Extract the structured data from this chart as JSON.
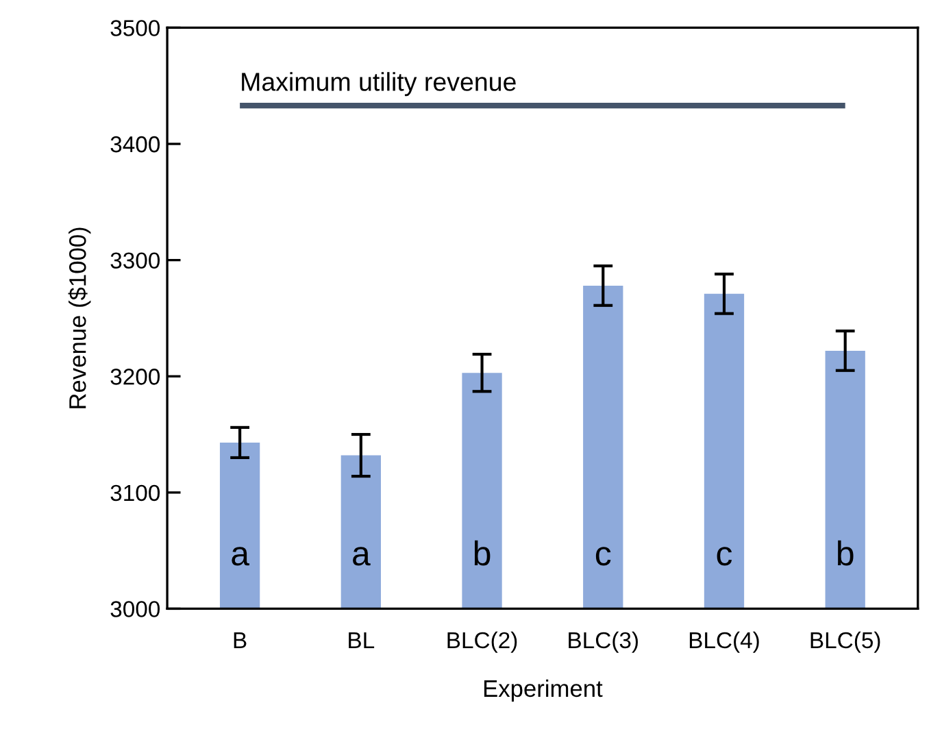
{
  "chart_data": {
    "type": "bar",
    "xlabel": "Experiment",
    "ylabel": "Revenue ($1000)",
    "categories": [
      "B",
      "BL",
      "BLC(2)",
      "BLC(3)",
      "BLC(4)",
      "BLC(5)"
    ],
    "values": [
      3143,
      3132,
      3203,
      3278,
      3271,
      3222
    ],
    "errors": [
      13,
      18,
      16,
      17,
      17,
      17
    ],
    "color": "#8eaadb",
    "ylim": [
      3000,
      3500
    ],
    "yticks": [
      3000,
      3100,
      3200,
      3300,
      3400,
      3500
    ],
    "ref_lines": [
      {
        "axis": "y",
        "value": 3433,
        "label": "Maximum utility revenue",
        "color": "#44546a"
      }
    ],
    "annotations": [
      "a",
      "a",
      "b",
      "c",
      "c",
      "b"
    ]
  }
}
